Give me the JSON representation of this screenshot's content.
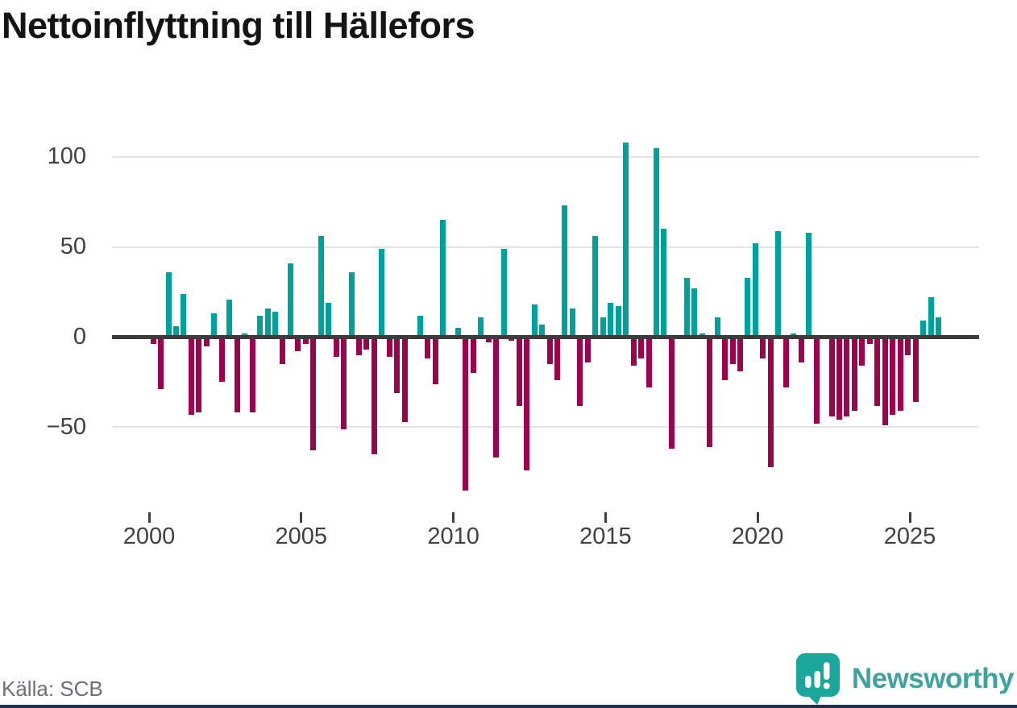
{
  "title": "Nettoinflyttning till Hällefors",
  "source": "Källa: SCB",
  "branding": {
    "name": "Newsworthy",
    "logo_icon": "speech-bubble-with-bar-chart-and-exclamation"
  },
  "colors": {
    "positive_bar": "#00a19a",
    "negative_bar": "#9b044d",
    "zero_line": "#3c3c3c",
    "gridline": "#e3e3e3",
    "title_text": "#141414",
    "axis_text": "#404040",
    "source_text": "#6e6e76",
    "logo_teal": "#3ea39d",
    "bottom_strip": "#203154"
  },
  "chart_data": {
    "type": "bar",
    "title": "Nettoinflyttning till Hällefors",
    "xlabel": "",
    "ylabel": "",
    "y_ticks": [
      100,
      50,
      0,
      -50
    ],
    "ylim": [
      -90,
      115
    ],
    "x_tick_labels": [
      "2000",
      "2005",
      "2010",
      "2015",
      "2020",
      "2025"
    ],
    "frequency": "quarterly",
    "start_period": "2000-Q1",
    "end_period": "2025-Q4",
    "grid": "horizontal-only",
    "legend": "none",
    "series": [
      {
        "name": "Nettoinflyttning",
        "values": [
          -4,
          -29,
          36,
          6,
          24,
          -43,
          -42,
          -5,
          13,
          -25,
          21,
          -42,
          2,
          -42,
          12,
          16,
          14,
          -15,
          41,
          -8,
          -4,
          -63,
          56,
          19,
          -11,
          -51,
          36,
          -10,
          -7,
          -65,
          49,
          -11,
          -31,
          -47,
          0,
          12,
          -12,
          -26,
          65,
          0,
          5,
          -85,
          -20,
          11,
          -3,
          -67,
          49,
          -2,
          -38,
          -74,
          18,
          7,
          -15,
          -24,
          73,
          16,
          -38,
          -14,
          56,
          11,
          19,
          17,
          108,
          -16,
          -12,
          -28,
          105,
          60,
          -62,
          0,
          33,
          27,
          2,
          -61,
          11,
          -24,
          -15,
          -19,
          33,
          52,
          -12,
          -72,
          59,
          -28,
          2,
          -14,
          58,
          -48,
          0,
          -44,
          -46,
          -44,
          -41,
          -16,
          -4,
          -38,
          -49,
          -43,
          -41,
          -10,
          -36,
          9,
          22,
          11
        ]
      }
    ]
  }
}
